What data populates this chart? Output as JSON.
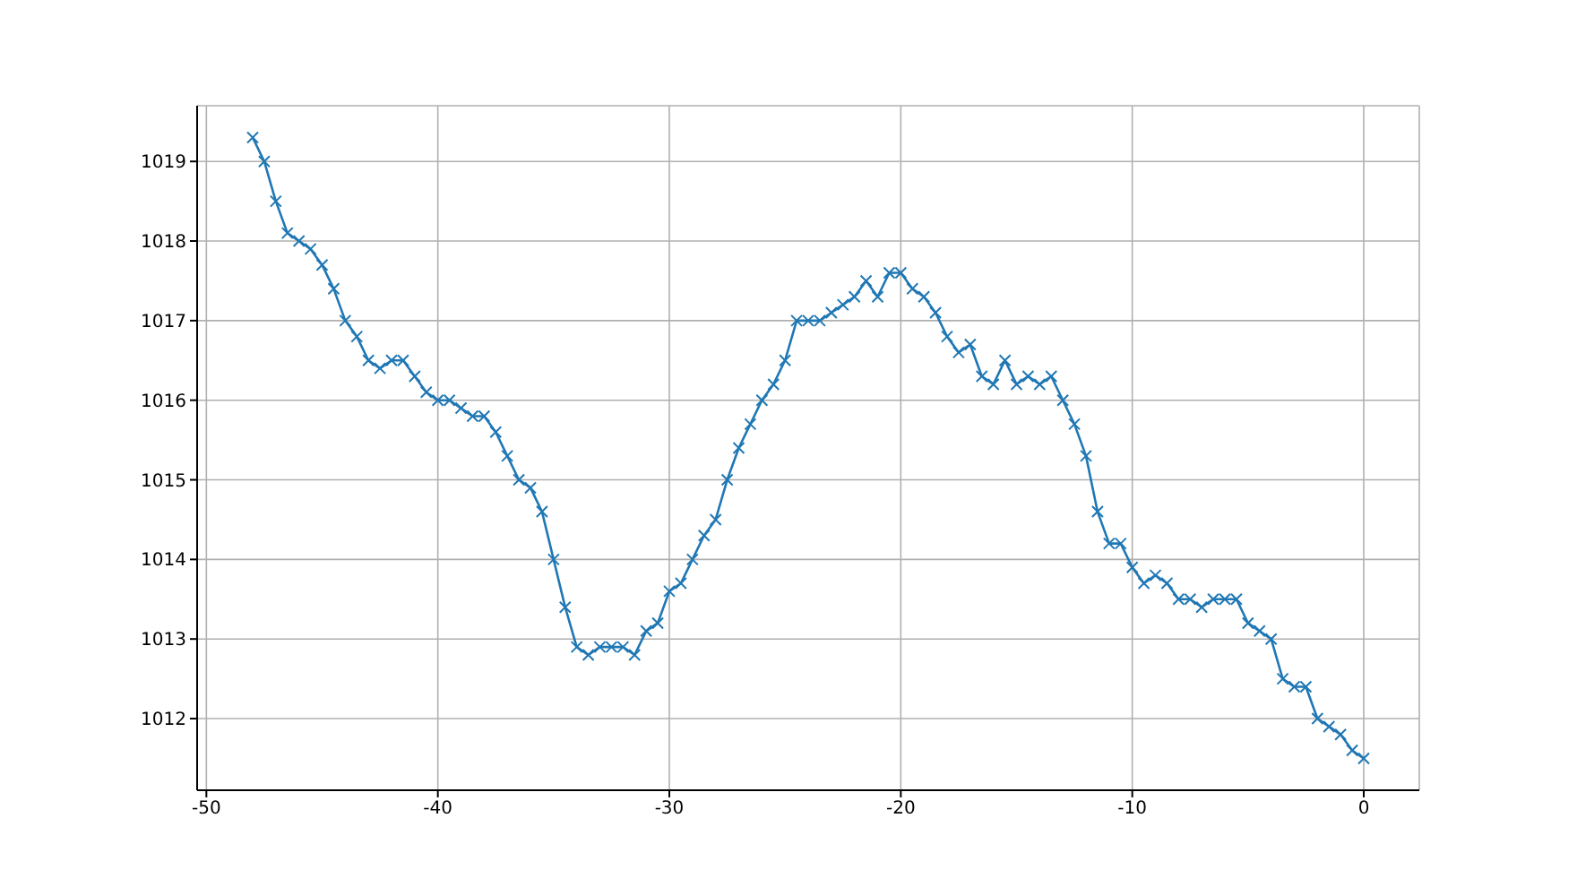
{
  "chart_data": {
    "type": "line",
    "x": [
      -48,
      -47.5,
      -47,
      -46.5,
      -46,
      -45.5,
      -45,
      -44.5,
      -44,
      -43.5,
      -43,
      -42.5,
      -42,
      -41.5,
      -41,
      -40.5,
      -40,
      -39.5,
      -39,
      -38.5,
      -38,
      -37.5,
      -37,
      -36.5,
      -36,
      -35.5,
      -35,
      -34.5,
      -34,
      -33.5,
      -33,
      -32.5,
      -32,
      -31.5,
      -31,
      -30.5,
      -30,
      -29.5,
      -29,
      -28.5,
      -28,
      -27.5,
      -27,
      -26.5,
      -26,
      -25.5,
      -25,
      -24.5,
      -24,
      -23.5,
      -23,
      -22.5,
      -22,
      -21.5,
      -21,
      -20.5,
      -20,
      -19.5,
      -19,
      -18.5,
      -18,
      -17.5,
      -17,
      -16.5,
      -16,
      -15.5,
      -15,
      -14.5,
      -14,
      -13.5,
      -13,
      -12.5,
      -12,
      -11.5,
      -11,
      -10.5,
      -10,
      -9.5,
      -9,
      -8.5,
      -8,
      -7.5,
      -7,
      -6.5,
      -6,
      -5.5,
      -5,
      -4.5,
      -4,
      -3.5,
      -3,
      -2.5,
      -2,
      -1.5,
      -1,
      -0.5,
      0
    ],
    "series": [
      {
        "color": "#1f77b4",
        "values": [
          1019.3,
          1019.0,
          1018.5,
          1018.1,
          1018.0,
          1017.9,
          1017.7,
          1017.4,
          1017.0,
          1016.8,
          1016.5,
          1016.4,
          1016.5,
          1016.5,
          1016.3,
          1016.1,
          1016.0,
          1016.0,
          1015.9,
          1015.8,
          1015.8,
          1015.6,
          1015.3,
          1015.0,
          1014.9,
          1014.6,
          1014.0,
          1013.4,
          1012.9,
          1012.8,
          1012.9,
          1012.9,
          1012.9,
          1012.8,
          1013.1,
          1013.2,
          1013.6,
          1013.7,
          1014.0,
          1014.3,
          1014.5,
          1015.0,
          1015.4,
          1015.7,
          1016.0,
          1016.2,
          1016.5,
          1017.0,
          1017.0,
          1017.0,
          1017.1,
          1017.2,
          1017.3,
          1017.5,
          1017.3,
          1017.6,
          1017.6,
          1017.4,
          1017.3,
          1017.1,
          1016.8,
          1016.6,
          1016.7,
          1016.3,
          1016.2,
          1016.5,
          1016.2,
          1016.3,
          1016.2,
          1016.3,
          1016.0,
          1015.7,
          1015.3,
          1014.6,
          1014.2,
          1014.2,
          1013.9,
          1013.7,
          1013.8,
          1013.7,
          1013.5,
          1013.5,
          1013.4,
          1013.5,
          1013.5,
          1013.5,
          1013.2,
          1013.1,
          1013.0,
          1012.5,
          1012.4,
          1012.4,
          1012.0,
          1011.9,
          1011.8,
          1011.6,
          1011.5
        ]
      }
    ],
    "xlim": [
      -50.4,
      2.4
    ],
    "xticks": [
      -50,
      -40,
      -30,
      -20,
      -10,
      0
    ],
    "ylim": [
      1011.1,
      1019.7
    ],
    "yticks": [
      1012,
      1013,
      1014,
      1015,
      1016,
      1017,
      1018,
      1019
    ],
    "grid": true,
    "marker": "cross",
    "line_style": "solid"
  }
}
